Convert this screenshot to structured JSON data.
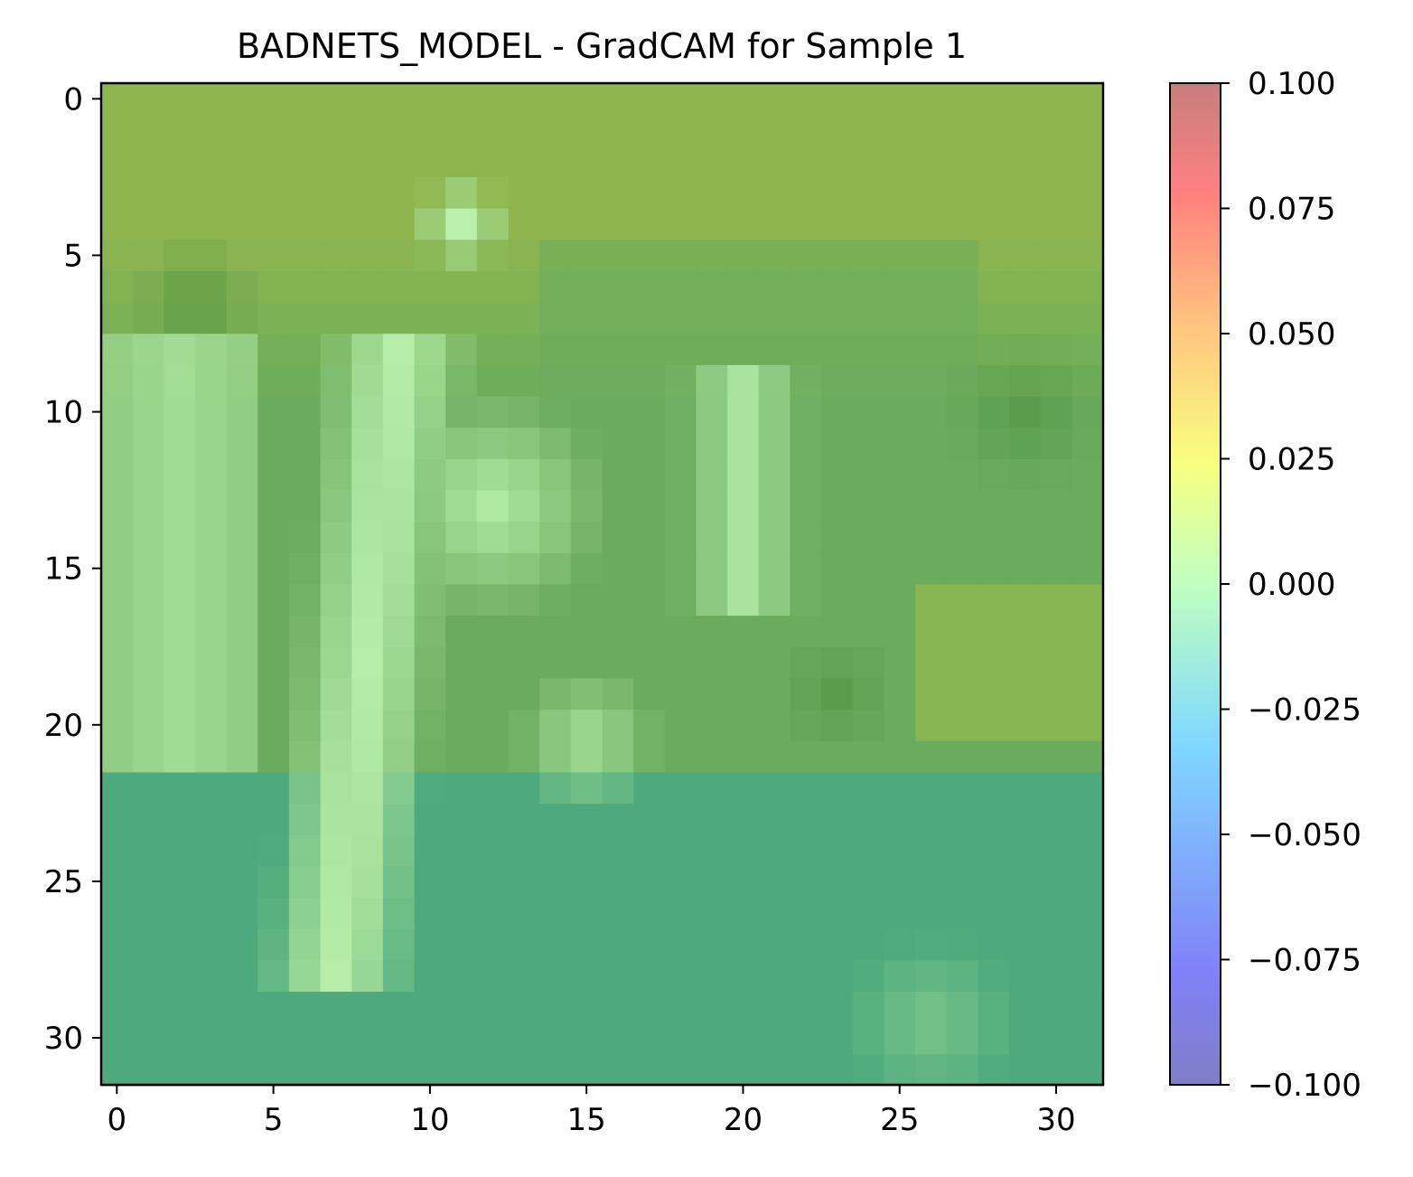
{
  "chart_data": {
    "type": "heatmap",
    "title": "BADNETS_MODEL - GradCAM for Sample 1",
    "x_ticks": [
      "0",
      "5",
      "10",
      "15",
      "20",
      "25",
      "30"
    ],
    "y_ticks": [
      "0",
      "5",
      "10",
      "15",
      "20",
      "25",
      "30"
    ],
    "xlim": [
      -0.5,
      31.5
    ],
    "ylim": [
      31.5,
      -0.5
    ],
    "grid_size": [
      32,
      32
    ],
    "colorbar": {
      "ticks": [
        "0.100",
        "0.075",
        "0.050",
        "0.025",
        "0.000",
        "−0.025",
        "−0.050",
        "−0.075",
        "−0.100"
      ],
      "range": [
        -0.1,
        0.1
      ],
      "colormap": "jet",
      "alpha": 0.5
    },
    "image_palette": {
      "top_band": "#8fb64e",
      "dark_green": "#4a8c3a",
      "mid_green": "#6aab5e",
      "light_green": "#a6e09a",
      "pale_green": "#c0f5b0",
      "bottom_teal": "#4eaa7c"
    }
  }
}
